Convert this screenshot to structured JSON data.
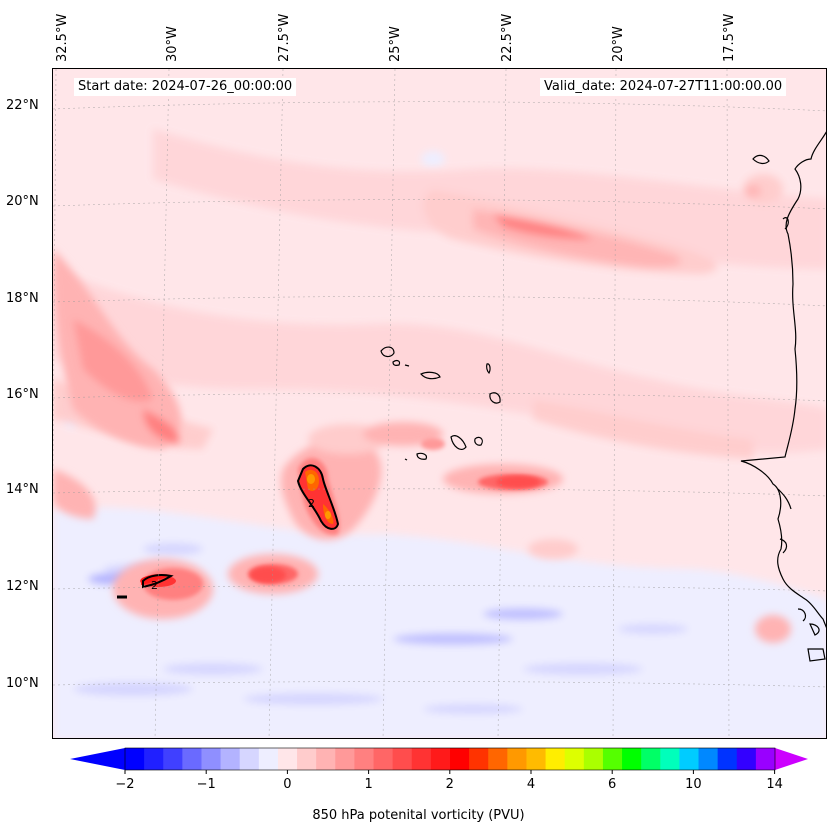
{
  "header": {
    "start_date": "Start date: 2024-07-26_00:00:00",
    "valid_date": "Valid_date: 2024-07-27T11:00:00.00"
  },
  "longitude_labels": [
    "32.5°W",
    "30°W",
    "27.5°W",
    "25°W",
    "22.5°W",
    "20°W",
    "17.5°W"
  ],
  "latitude_labels": [
    "22°N",
    "20°N",
    "18°N",
    "16°N",
    "14°N",
    "12°N",
    "10°N"
  ],
  "contour_labels": [
    "2",
    "2"
  ],
  "colorbar": {
    "label": "850 hPa potenital vorticity (PVU)",
    "tick_labels": [
      "−2",
      "−1",
      "0",
      "1",
      "2",
      "4",
      "6",
      "10",
      "14"
    ],
    "colors": [
      "#0000ff",
      "#2020ff",
      "#4040ff",
      "#6a6aff",
      "#8f8fff",
      "#b3b3ff",
      "#d6d6ff",
      "#eeeeff",
      "#ffe6e9",
      "#ffcccc",
      "#ffb3b3",
      "#ff9999",
      "#ff8080",
      "#ff6666",
      "#ff4d4d",
      "#ff3333",
      "#ff1a1a",
      "#ff0000",
      "#ff3300",
      "#ff6600",
      "#ff9900",
      "#ffbb00",
      "#ffee00",
      "#ddff00",
      "#aaff00",
      "#55ff00",
      "#00ff00",
      "#00ff66",
      "#00ffbb",
      "#00ccff",
      "#0088ff",
      "#0033ff",
      "#3300ff",
      "#9900ff"
    ],
    "under_color": "#0000ff",
    "over_color": "#cc00ff"
  }
}
